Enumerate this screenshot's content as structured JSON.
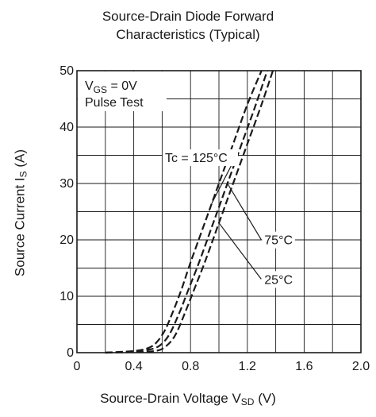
{
  "chart_data": {
    "type": "line",
    "title_line1": "Source-Drain Diode Forward",
    "title_line2": "Characteristics  (Typical)",
    "xlabel_main": "Source-Drain Voltage  V",
    "xlabel_sub": "SD",
    "xlabel_unit": " (V)",
    "ylabel_main": "Source Current  I",
    "ylabel_sub": "S",
    "ylabel_unit": " (A)",
    "xlim": [
      0,
      2.0
    ],
    "ylim": [
      0,
      50
    ],
    "x_ticks": [
      "0",
      "0.4",
      "0.8",
      "1.2",
      "1.6",
      "2.0"
    ],
    "y_ticks": [
      "0",
      "10",
      "20",
      "30",
      "40",
      "50"
    ],
    "grid": true,
    "conditions": {
      "vgs_main": "V",
      "vgs_sub": "GS",
      "vgs_value": " = 0V",
      "pulse": "Pulse Test"
    },
    "series": [
      {
        "name": "Tc = 125°C",
        "style": "dashed",
        "x": [
          0.2,
          0.4,
          0.5,
          0.56,
          0.62,
          0.68,
          0.74,
          0.8,
          0.9,
          1.0,
          1.1,
          1.2,
          1.3
        ],
        "y": [
          0.0,
          0.3,
          0.8,
          1.8,
          4.0,
          7.5,
          11.5,
          16.0,
          23.0,
          30.0,
          37.0,
          44.0,
          50.0
        ]
      },
      {
        "name": "75°C",
        "style": "dashed",
        "x": [
          0.2,
          0.4,
          0.5,
          0.58,
          0.65,
          0.72,
          0.79,
          0.86,
          0.96,
          1.06,
          1.16,
          1.26,
          1.34
        ],
        "y": [
          0.0,
          0.2,
          0.5,
          1.2,
          3.2,
          7.0,
          11.5,
          16.0,
          23.0,
          30.0,
          37.0,
          44.0,
          50.0
        ]
      },
      {
        "name": "25°C",
        "style": "dashed",
        "x": [
          0.2,
          0.4,
          0.55,
          0.62,
          0.69,
          0.76,
          0.83,
          0.9,
          1.0,
          1.1,
          1.2,
          1.3,
          1.38
        ],
        "y": [
          0.0,
          0.1,
          0.3,
          1.0,
          3.0,
          7.0,
          11.5,
          16.0,
          23.0,
          30.0,
          37.0,
          44.0,
          50.0
        ]
      }
    ],
    "annotations": [
      {
        "text": "Tc = 125°C",
        "series": 0,
        "at_x": 0.95,
        "label_x": 0.62,
        "label_y": 33.8
      },
      {
        "text": "75°C",
        "series": 1,
        "at_x": 1.06,
        "label_x": 1.32,
        "label_y": 19.2
      },
      {
        "text": "25°C",
        "series": 2,
        "at_x": 1.0,
        "label_x": 1.32,
        "label_y": 12.2
      }
    ]
  }
}
